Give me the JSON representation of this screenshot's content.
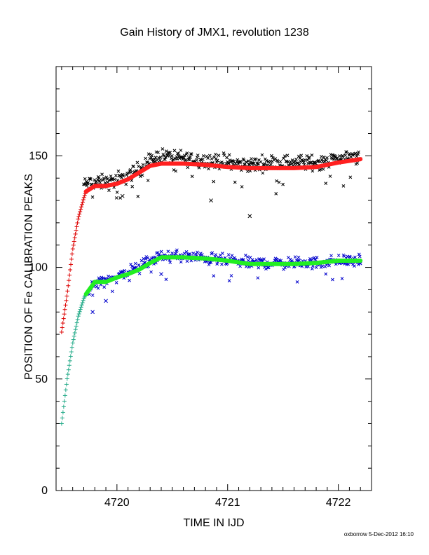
{
  "chart_data": {
    "type": "scatter",
    "title": "Gain History of JMX1, revolution 1238",
    "xlabel": "TIME IN IJD",
    "ylabel": "POSITION OF Fe CALIBRATION PEAKS",
    "xlim": [
      4719.45,
      4722.3
    ],
    "ylim": [
      0,
      190
    ],
    "x_ticks": [
      4720,
      4721,
      4722
    ],
    "x_tick_labels": [
      "4720",
      "4721",
      "4722"
    ],
    "y_ticks": [
      0,
      50,
      100,
      150
    ],
    "y_tick_labels": [
      "0",
      "50",
      "100",
      "150"
    ],
    "grid": false,
    "series": [
      {
        "color": "#000000",
        "marker": "x",
        "start": 4719.7,
        "end": 4722.2,
        "count": 440,
        "scatter_amplitude": 5,
        "x": [
          4719.7,
          4719.8,
          4719.9,
          4720.0,
          4720.1,
          4720.2,
          4720.3,
          4720.4,
          4720.6,
          4720.8,
          4721.0,
          4721.2,
          4721.4,
          4721.6,
          4721.8,
          4722.0,
          4722.2
        ],
        "values": [
          137,
          138,
          138,
          139,
          141,
          144,
          148,
          150,
          149,
          148,
          147,
          146,
          147,
          147,
          147,
          149,
          150
        ],
        "outliers": [
          {
            "x": 4721.2,
            "y": 123
          },
          {
            "x": 4720.85,
            "y": 130
          },
          {
            "x": 4720.05,
            "y": 132
          }
        ]
      },
      {
        "color": "#dd0000",
        "marker": "+",
        "start": 4719.5,
        "end": 4719.72,
        "count": 38,
        "scatter_amplitude": 0,
        "x": [
          4719.5,
          4719.55,
          4719.6,
          4719.65,
          4719.7,
          4719.72
        ],
        "values": [
          71,
          88,
          108,
          122,
          131,
          134
        ]
      },
      {
        "color": "#ff2020",
        "marker": "band",
        "start": 4719.72,
        "end": 4722.2,
        "count": 0,
        "x": [
          4719.72,
          4719.8,
          4719.9,
          4720.0,
          4720.1,
          4720.2,
          4720.3,
          4720.4,
          4720.6,
          4720.8,
          4721.0,
          4721.2,
          4721.4,
          4721.6,
          4721.8,
          4722.0,
          4722.2
        ],
        "values": [
          134,
          136.5,
          136.5,
          137.5,
          139.5,
          142.5,
          145.5,
          146.5,
          146.5,
          146,
          145,
          144.5,
          144.5,
          144.5,
          145,
          147,
          148.5
        ]
      },
      {
        "color": "#0000cc",
        "marker": "x",
        "start": 4719.75,
        "end": 4722.2,
        "count": 400,
        "scatter_amplitude": 4,
        "x": [
          4719.75,
          4719.85,
          4720.0,
          4720.1,
          4720.2,
          4720.3,
          4720.4,
          4720.6,
          4720.8,
          4721.0,
          4721.2,
          4721.4,
          4721.6,
          4721.8,
          4722.0,
          4722.2
        ],
        "values": [
          90,
          94,
          96,
          98,
          100,
          103,
          105,
          105,
          104,
          103,
          102,
          102,
          102,
          102,
          103,
          103
        ],
        "outliers": [
          {
            "x": 4719.78,
            "y": 80
          },
          {
            "x": 4719.9,
            "y": 85
          },
          {
            "x": 4720.4,
            "y": 97
          }
        ]
      },
      {
        "color": "#22aa88",
        "marker": "+",
        "start": 4719.5,
        "end": 4719.72,
        "count": 36,
        "scatter_amplitude": 0,
        "x": [
          4719.5,
          4719.55,
          4719.6,
          4719.65,
          4719.7,
          4719.72
        ],
        "values": [
          30,
          50,
          66,
          78,
          86,
          88
        ]
      },
      {
        "color": "#22ee22",
        "marker": "band",
        "start": 4719.72,
        "end": 4722.2,
        "count": 0,
        "x": [
          4719.72,
          4719.8,
          4719.9,
          4720.0,
          4720.1,
          4720.2,
          4720.3,
          4720.4,
          4720.6,
          4720.8,
          4721.0,
          4721.2,
          4721.4,
          4721.6,
          4721.8,
          4722.0,
          4722.2
        ],
        "values": [
          88,
          93.5,
          93.5,
          95.5,
          97,
          99,
          102,
          104.5,
          104.5,
          104,
          103,
          101.5,
          101.5,
          101.5,
          102,
          103,
          103
        ]
      }
    ]
  },
  "footer": {
    "credit": "oxborrow 5-Dec-2012 16:10"
  }
}
